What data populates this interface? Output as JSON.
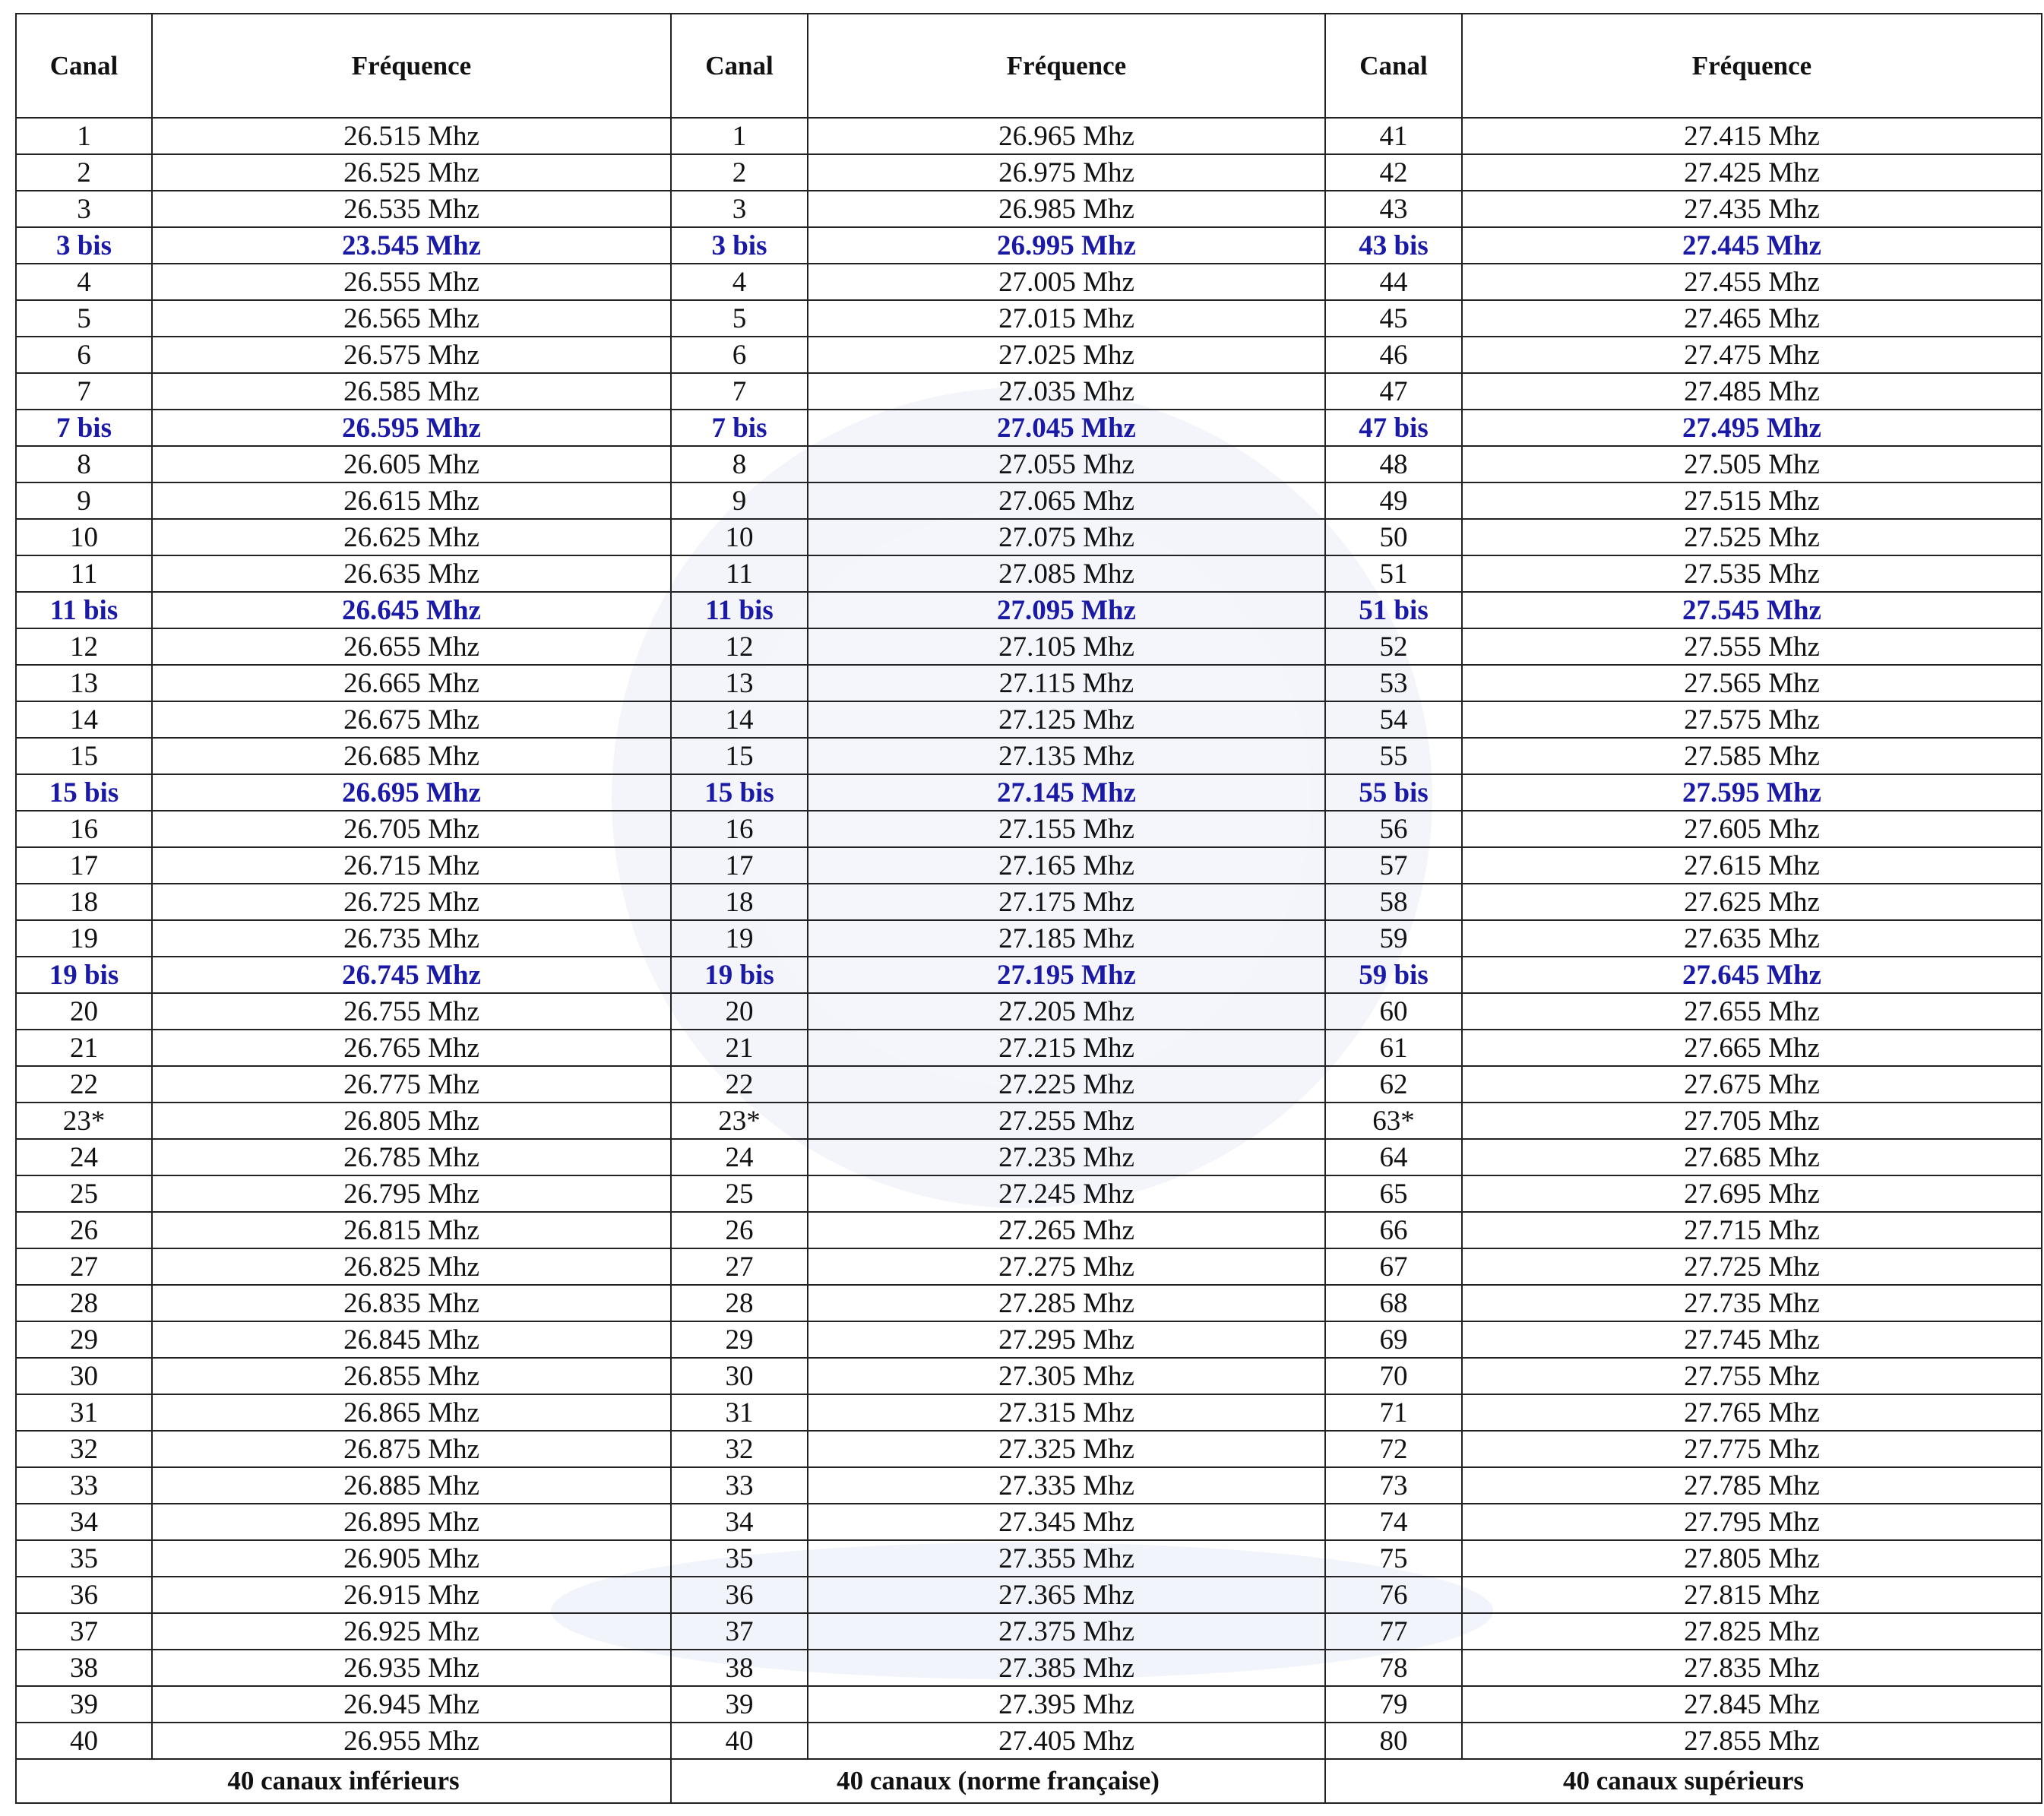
{
  "groups": [
    {
      "header": {
        "canal": "Canal",
        "frequence": "Fréquence"
      },
      "footer": "40 canaux inférieurs",
      "rows": [
        {
          "canal": "1",
          "frequence": "26.515 Mhz"
        },
        {
          "canal": "2",
          "frequence": "26.525 Mhz"
        },
        {
          "canal": "3",
          "frequence": "26.535 Mhz"
        },
        {
          "canal": "3 bis",
          "frequence": "23.545 Mhz",
          "color": "#1a1aa6"
        },
        {
          "canal": "4",
          "frequence": "26.555 Mhz"
        },
        {
          "canal": "5",
          "frequence": "26.565 Mhz"
        },
        {
          "canal": "6",
          "frequence": "26.575 Mhz"
        },
        {
          "canal": "7",
          "frequence": "26.585 Mhz"
        },
        {
          "canal": "7 bis",
          "frequence": "26.595 Mhz",
          "color": "#1a1aa6"
        },
        {
          "canal": "8",
          "frequence": "26.605 Mhz"
        },
        {
          "canal": "9",
          "frequence": "26.615 Mhz"
        },
        {
          "canal": "10",
          "frequence": "26.625 Mhz"
        },
        {
          "canal": "11",
          "frequence": "26.635 Mhz"
        },
        {
          "canal": "11 bis",
          "frequence": "26.645 Mhz",
          "color": "#1a1aa6"
        },
        {
          "canal": "12",
          "frequence": "26.655 Mhz"
        },
        {
          "canal": "13",
          "frequence": "26.665 Mhz"
        },
        {
          "canal": "14",
          "frequence": "26.675 Mhz"
        },
        {
          "canal": "15",
          "frequence": "26.685 Mhz"
        },
        {
          "canal": "15 bis",
          "frequence": "26.695 Mhz",
          "color": "#1a1aa6"
        },
        {
          "canal": "16",
          "frequence": "26.705 Mhz"
        },
        {
          "canal": "17",
          "frequence": "26.715 Mhz"
        },
        {
          "canal": "18",
          "frequence": "26.725 Mhz"
        },
        {
          "canal": "19",
          "frequence": "26.735 Mhz"
        },
        {
          "canal": "19 bis",
          "frequence": "26.745 Mhz",
          "color": "#1a1aa6"
        },
        {
          "canal": "20",
          "frequence": "26.755 Mhz"
        },
        {
          "canal": "21",
          "frequence": "26.765 Mhz"
        },
        {
          "canal": "22",
          "frequence": "26.775 Mhz"
        },
        {
          "canal": "23*",
          "frequence": "26.805 Mhz"
        },
        {
          "canal": "24",
          "frequence": "26.785 Mhz"
        },
        {
          "canal": "25",
          "frequence": "26.795 Mhz"
        },
        {
          "canal": "26",
          "frequence": "26.815 Mhz"
        },
        {
          "canal": "27",
          "frequence": "26.825 Mhz"
        },
        {
          "canal": "28",
          "frequence": "26.835 Mhz"
        },
        {
          "canal": "29",
          "frequence": "26.845 Mhz"
        },
        {
          "canal": "30",
          "frequence": "26.855 Mhz"
        },
        {
          "canal": "31",
          "frequence": "26.865 Mhz"
        },
        {
          "canal": "32",
          "frequence": "26.875 Mhz"
        },
        {
          "canal": "33",
          "frequence": "26.885 Mhz"
        },
        {
          "canal": "34",
          "frequence": "26.895 Mhz"
        },
        {
          "canal": "35",
          "frequence": "26.905 Mhz"
        },
        {
          "canal": "36",
          "frequence": "26.915 Mhz"
        },
        {
          "canal": "37",
          "frequence": "26.925 Mhz"
        },
        {
          "canal": "38",
          "frequence": "26.935 Mhz"
        },
        {
          "canal": "39",
          "frequence": "26.945 Mhz"
        },
        {
          "canal": "40",
          "frequence": "26.955 Mhz"
        }
      ]
    },
    {
      "header": {
        "canal": "Canal",
        "frequence": "Fréquence"
      },
      "footer": "40 canaux (norme française)",
      "rows": [
        {
          "canal": "1",
          "frequence": "26.965 Mhz"
        },
        {
          "canal": "2",
          "frequence": "26.975 Mhz"
        },
        {
          "canal": "3",
          "frequence": "26.985 Mhz"
        },
        {
          "canal": "3 bis",
          "frequence": "26.995 Mhz",
          "color": "#1a1aa6"
        },
        {
          "canal": "4",
          "frequence": "27.005 Mhz"
        },
        {
          "canal": "5",
          "frequence": "27.015 Mhz"
        },
        {
          "canal": "6",
          "frequence": "27.025 Mhz"
        },
        {
          "canal": "7",
          "frequence": "27.035 Mhz"
        },
        {
          "canal": "7 bis",
          "frequence": "27.045 Mhz",
          "color": "#1a1aa6"
        },
        {
          "canal": "8",
          "frequence": "27.055 Mhz"
        },
        {
          "canal": "9",
          "frequence": "27.065 Mhz"
        },
        {
          "canal": "10",
          "frequence": "27.075 Mhz"
        },
        {
          "canal": "11",
          "frequence": "27.085 Mhz"
        },
        {
          "canal": "11 bis",
          "frequence": "27.095 Mhz",
          "color": "#1a1aa6"
        },
        {
          "canal": "12",
          "frequence": "27.105 Mhz"
        },
        {
          "canal": "13",
          "frequence": "27.115 Mhz"
        },
        {
          "canal": "14",
          "frequence": "27.125 Mhz"
        },
        {
          "canal": "15",
          "frequence": "27.135 Mhz"
        },
        {
          "canal": "15 bis",
          "frequence": "27.145 Mhz",
          "color": "#1a1aa6"
        },
        {
          "canal": "16",
          "frequence": "27.155 Mhz"
        },
        {
          "canal": "17",
          "frequence": "27.165 Mhz"
        },
        {
          "canal": "18",
          "frequence": "27.175 Mhz"
        },
        {
          "canal": "19",
          "frequence": "27.185 Mhz"
        },
        {
          "canal": "19 bis",
          "frequence": "27.195 Mhz",
          "color": "#1a1aa6"
        },
        {
          "canal": "20",
          "frequence": "27.205 Mhz"
        },
        {
          "canal": "21",
          "frequence": "27.215 Mhz"
        },
        {
          "canal": "22",
          "frequence": "27.225 Mhz"
        },
        {
          "canal": "23*",
          "frequence": "27.255 Mhz"
        },
        {
          "canal": "24",
          "frequence": "27.235 Mhz"
        },
        {
          "canal": "25",
          "frequence": "27.245 Mhz"
        },
        {
          "canal": "26",
          "frequence": "27.265 Mhz"
        },
        {
          "canal": "27",
          "frequence": "27.275 Mhz"
        },
        {
          "canal": "28",
          "frequence": "27.285 Mhz"
        },
        {
          "canal": "29",
          "frequence": "27.295 Mhz"
        },
        {
          "canal": "30",
          "frequence": "27.305 Mhz"
        },
        {
          "canal": "31",
          "frequence": "27.315 Mhz"
        },
        {
          "canal": "32",
          "frequence": "27.325 Mhz"
        },
        {
          "canal": "33",
          "frequence": "27.335 Mhz"
        },
        {
          "canal": "34",
          "frequence": "27.345 Mhz"
        },
        {
          "canal": "35",
          "frequence": "27.355 Mhz"
        },
        {
          "canal": "36",
          "frequence": "27.365 Mhz"
        },
        {
          "canal": "37",
          "frequence": "27.375 Mhz"
        },
        {
          "canal": "38",
          "frequence": "27.385 Mhz"
        },
        {
          "canal": "39",
          "frequence": "27.395 Mhz"
        },
        {
          "canal": "40",
          "frequence": "27.405 Mhz"
        }
      ]
    },
    {
      "header": {
        "canal": "Canal",
        "frequence": "Fréquence"
      },
      "footer": "40 canaux supérieurs",
      "rows": [
        {
          "canal": "41",
          "frequence": "27.415 Mhz"
        },
        {
          "canal": "42",
          "frequence": "27.425 Mhz"
        },
        {
          "canal": "43",
          "frequence": "27.435 Mhz"
        },
        {
          "canal": "43 bis",
          "frequence": "27.445 Mhz",
          "color": "#1a1aa6"
        },
        {
          "canal": "44",
          "frequence": "27.455 Mhz"
        },
        {
          "canal": "45",
          "frequence": "27.465 Mhz"
        },
        {
          "canal": "46",
          "frequence": "27.475 Mhz"
        },
        {
          "canal": "47",
          "frequence": "27.485 Mhz"
        },
        {
          "canal": "47 bis",
          "frequence": "27.495 Mhz",
          "color": "#1a1aa6"
        },
        {
          "canal": "48",
          "frequence": "27.505 Mhz"
        },
        {
          "canal": "49",
          "frequence": "27.515 Mhz"
        },
        {
          "canal": "50",
          "frequence": "27.525 Mhz"
        },
        {
          "canal": "51",
          "frequence": "27.535 Mhz"
        },
        {
          "canal": "51 bis",
          "frequence": "27.545 Mhz",
          "color": "#1a1aa6"
        },
        {
          "canal": "52",
          "frequence": "27.555 Mhz"
        },
        {
          "canal": "53",
          "frequence": "27.565 Mhz"
        },
        {
          "canal": "54",
          "frequence": "27.575 Mhz"
        },
        {
          "canal": "55",
          "frequence": "27.585 Mhz"
        },
        {
          "canal": "55 bis",
          "frequence": "27.595 Mhz",
          "color": "#1a1aa6"
        },
        {
          "canal": "56",
          "frequence": "27.605 Mhz"
        },
        {
          "canal": "57",
          "frequence": "27.615 Mhz"
        },
        {
          "canal": "58",
          "frequence": "27.625 Mhz"
        },
        {
          "canal": "59",
          "frequence": "27.635 Mhz"
        },
        {
          "canal": "59 bis",
          "frequence": "27.645 Mhz",
          "color": "#1a1aa6"
        },
        {
          "canal": "60",
          "frequence": "27.655 Mhz"
        },
        {
          "canal": "61",
          "frequence": "27.665 Mhz"
        },
        {
          "canal": "62",
          "frequence": "27.675 Mhz"
        },
        {
          "canal": "63*",
          "frequence": "27.705 Mhz"
        },
        {
          "canal": "64",
          "frequence": "27.685 Mhz"
        },
        {
          "canal": "65",
          "frequence": "27.695 Mhz"
        },
        {
          "canal": "66",
          "frequence": "27.715 Mhz"
        },
        {
          "canal": "67",
          "frequence": "27.725 Mhz"
        },
        {
          "canal": "68",
          "frequence": "27.735 Mhz"
        },
        {
          "canal": "69",
          "frequence": "27.745 Mhz"
        },
        {
          "canal": "70",
          "frequence": "27.755 Mhz"
        },
        {
          "canal": "71",
          "frequence": "27.765 Mhz"
        },
        {
          "canal": "72",
          "frequence": "27.775 Mhz"
        },
        {
          "canal": "73",
          "frequence": "27.785 Mhz"
        },
        {
          "canal": "74",
          "frequence": "27.795 Mhz"
        },
        {
          "canal": "75",
          "frequence": "27.805 Mhz"
        },
        {
          "canal": "76",
          "frequence": "27.815 Mhz"
        },
        {
          "canal": "77",
          "frequence": "27.825 Mhz"
        },
        {
          "canal": "78",
          "frequence": "27.835 Mhz"
        },
        {
          "canal": "79",
          "frequence": "27.845 Mhz"
        },
        {
          "canal": "80",
          "frequence": "27.855 Mhz"
        }
      ]
    }
  ]
}
